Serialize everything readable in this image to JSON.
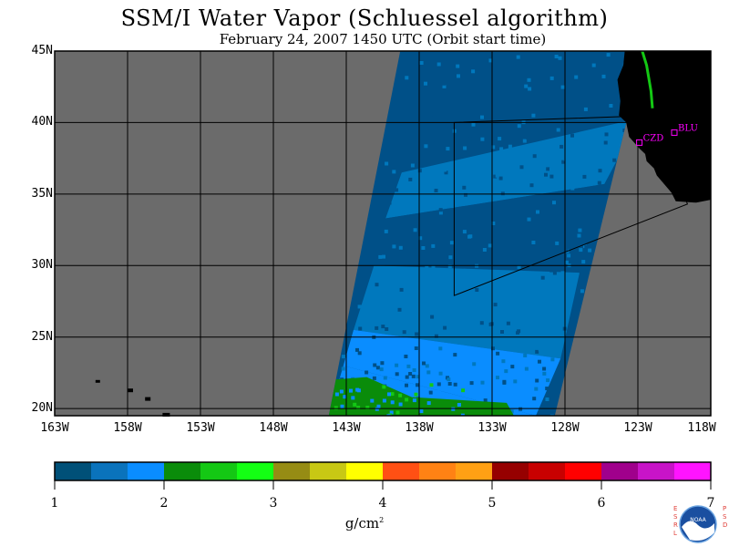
{
  "title": "SSM/I Water Vapor (Schluessel algorithm)",
  "subtitle": "February 24, 2007  1450 UTC  (Orbit start time)",
  "map": {
    "lon_range": [
      -163,
      -118
    ],
    "lat_range": [
      19.5,
      45
    ],
    "lat_ticks": [
      {
        "lat": 45,
        "label": "45N"
      },
      {
        "lat": 40,
        "label": "40N"
      },
      {
        "lat": 35,
        "label": "35N"
      },
      {
        "lat": 30,
        "label": "30N"
      },
      {
        "lat": 25,
        "label": "25N"
      },
      {
        "lat": 20,
        "label": "20N"
      }
    ],
    "lon_ticks": [
      {
        "lon": -163,
        "label": "163W"
      },
      {
        "lon": -158,
        "label": "158W"
      },
      {
        "lon": -153,
        "label": "153W"
      },
      {
        "lon": -148,
        "label": "148W"
      },
      {
        "lon": -143,
        "label": "143W"
      },
      {
        "lon": -138,
        "label": "138W"
      },
      {
        "lon": -133,
        "label": "133W"
      },
      {
        "lon": -128,
        "label": "128W"
      },
      {
        "lon": -123,
        "label": "123W"
      },
      {
        "lon": -118,
        "label": "118W"
      }
    ],
    "stations": [
      {
        "id": "CZD",
        "lon": -122.9,
        "lat": 38.6
      },
      {
        "id": "BLU",
        "lon": -120.5,
        "lat": 39.3
      }
    ],
    "swath": {
      "corners": [
        [
          -139.3,
          45
        ],
        [
          -122.6,
          45
        ],
        [
          -128.7,
          19.5
        ],
        [
          -144.2,
          19.5
        ]
      ]
    },
    "bands": [
      {
        "top": [
          [
            -138.5,
            45
          ],
          [
            -123.9,
            45
          ]
        ],
        "bottom": [
          [
            -139.2,
            36.5
          ],
          [
            -122.9,
            40.3
          ]
        ],
        "color": "#005088"
      },
      {
        "top": [
          [
            -139.2,
            36.5
          ],
          [
            -122.9,
            40.3
          ]
        ],
        "bottom": [
          [
            -140.3,
            33.3
          ],
          [
            -125.3,
            35.7
          ]
        ],
        "color": "#0078bd"
      },
      {
        "top": [
          [
            -140.3,
            33.3
          ],
          [
            -125.3,
            35.7
          ]
        ],
        "bottom": [
          [
            -141.1,
            30.0
          ],
          [
            -127.0,
            29.5
          ]
        ],
        "color": "#005088"
      },
      {
        "top": [
          [
            -141.1,
            30.0
          ],
          [
            -127.0,
            29.5
          ]
        ],
        "bottom": [
          [
            -142.5,
            25.5
          ],
          [
            -128.3,
            23.5
          ]
        ],
        "color": "#0078bd"
      },
      {
        "top": [
          [
            -142.5,
            25.5
          ],
          [
            -128.3,
            23.5
          ]
        ],
        "bottom": [
          [
            -143.2,
            23.0
          ],
          [
            -130.0,
            19.5
          ]
        ],
        "color": "#0a8dff"
      },
      {
        "top": [
          [
            -143.2,
            23.0
          ],
          [
            -130.0,
            19.5
          ]
        ],
        "bottom": [
          [
            -144.2,
            19.5
          ],
          [
            -143.2,
            19.5
          ]
        ],
        "color": "#0a8dff"
      }
    ],
    "green_patch": [
      [
        -144.2,
        22.0
      ],
      [
        -141.6,
        22.2
      ],
      [
        -138.5,
        20.8
      ],
      [
        -132.0,
        20.4
      ],
      [
        -131.5,
        19.5
      ],
      [
        -144.3,
        19.5
      ]
    ],
    "coast_green": [
      [
        -122.7,
        45
      ],
      [
        -122.4,
        44.0
      ],
      [
        -122.1,
        42.2
      ],
      [
        -122.0,
        41.0
      ]
    ],
    "region_box": [
      [
        -135.6,
        40.0
      ],
      [
        -121.8,
        40.5
      ],
      [
        -119.6,
        34.3
      ],
      [
        -135.6,
        27.9
      ]
    ],
    "land_color": "#000000",
    "ocean_no_data_color": "#6b6b6b",
    "colors": {
      "swath_edge": "#005088"
    }
  },
  "colorbar": {
    "colors": [
      "#005078",
      "#0a73bc",
      "#0a8dff",
      "#0a8c0a",
      "#14c814",
      "#14ff14",
      "#968c14",
      "#c8c814",
      "#ffff00",
      "#ff5014",
      "#ff8214",
      "#ffa014",
      "#960000",
      "#c80000",
      "#ff0000",
      "#a0008c",
      "#c814c8",
      "#ff14ff"
    ],
    "ticks": [
      "1",
      "2",
      "3",
      "4",
      "5",
      "6",
      "7"
    ],
    "units": "g/cm",
    "units_sup": "2"
  },
  "logo": {
    "left_text": "ESRL",
    "right_text": "PSD",
    "center_text": "NOAA"
  }
}
